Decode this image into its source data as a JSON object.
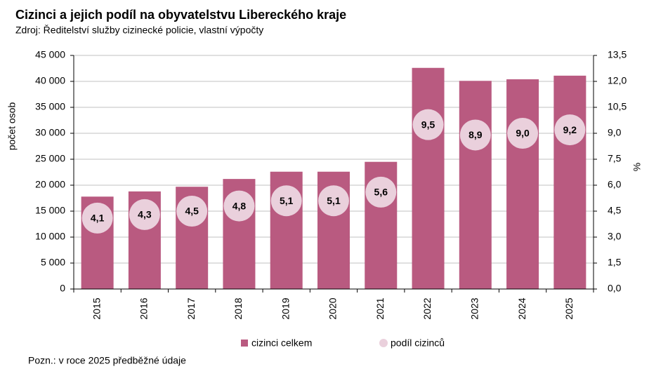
{
  "chart_data": {
    "type": "combo",
    "title": "Cizinci a jejich podíl na obyvatelstvu Libereckého kraje",
    "subtitle": "Zdroj: Ředitelství  služby cizinecké policie, vlastní  výpočty",
    "note": "Pozn.: v roce 2025 předběžné údaje",
    "y_label": "počet osob",
    "y2_label": "%",
    "categories": [
      "2015",
      "2016",
      "2017",
      "2018",
      "2019",
      "2020",
      "2021",
      "2022",
      "2023",
      "2024",
      "2025"
    ],
    "series": [
      {
        "name": "cizinci celkem",
        "type": "bar",
        "color": "#b95a80",
        "values": [
          17800,
          18800,
          19700,
          21200,
          22600,
          22600,
          24500,
          42600,
          40100,
          40400,
          41100
        ]
      },
      {
        "name": "podíl cizinců",
        "type": "bubble",
        "axis": "y2",
        "color": "#ead0dc",
        "values": [
          4.1,
          4.3,
          4.5,
          4.8,
          5.1,
          5.1,
          5.6,
          9.5,
          8.9,
          9.0,
          9.2
        ],
        "value_labels": [
          "4,1",
          "4,3",
          "4,5",
          "4,8",
          "5,1",
          "5,1",
          "5,6",
          "9,5",
          "8,9",
          "9,0",
          "9,2"
        ]
      }
    ],
    "ylim": [
      0,
      45000
    ],
    "yticks": [
      0,
      {
        "value": 5000,
        "label": "5 000"
      },
      {
        "value": 10000,
        "label": "10 000"
      },
      {
        "value": 15000,
        "label": "15 000"
      },
      {
        "value": 20000,
        "label": "20 000"
      },
      {
        "value": 25000,
        "label": "25 000"
      },
      {
        "value": 30000,
        "label": "30 000"
      },
      {
        "value": 35000,
        "label": "35 000"
      },
      {
        "value": 40000,
        "label": "40 000"
      },
      {
        "value": 45000,
        "label": "45 000"
      }
    ],
    "y2lim": [
      0,
      13.5
    ],
    "y2ticks": [
      {
        "value": 0,
        "label": "0,0"
      },
      {
        "value": 1.5,
        "label": "1,5"
      },
      {
        "value": 3,
        "label": "3,0"
      },
      {
        "value": 4.5,
        "label": "4,5"
      },
      {
        "value": 6,
        "label": "6,0"
      },
      {
        "value": 7.5,
        "label": "7,5"
      },
      {
        "value": 9,
        "label": "9,0"
      },
      {
        "value": 10.5,
        "label": "10,5"
      },
      {
        "value": 12,
        "label": "12,0"
      },
      {
        "value": 13.5,
        "label": "13,5"
      }
    ],
    "grid": true
  }
}
